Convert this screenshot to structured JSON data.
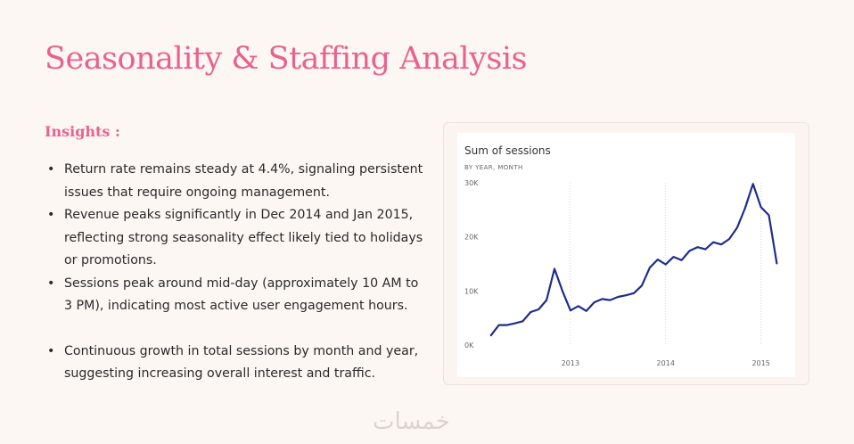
{
  "title": "Seasonality & Staffing Analysis",
  "insights": {
    "heading": "Insights :",
    "bullets": [
      "Return rate remains steady at 4.4%, signaling persistent issues that require ongoing management.",
      "Revenue peaks significantly in Dec 2014 and Jan 2015, reflecting strong seasonality effect likely tied to holidays or promotions.",
      "Sessions peak around mid-day (approximately 10 AM to 3 PM), indicating most active user engagement hours.",
      "Continuous growth in total sessions by month and year, suggesting increasing overall interest and traffic."
    ]
  },
  "watermark": "خمسات",
  "colors": {
    "accent": "#e9628f",
    "line": "#1f2d8c",
    "background": "#fdf7f4"
  },
  "chart_data": {
    "type": "line",
    "title": "Sum of sessions",
    "subtitle": "BY YEAR, MONTH",
    "xlabel": "",
    "ylabel": "",
    "x_ticks": [
      "2013",
      "2014",
      "2015"
    ],
    "y_ticks": [
      "0K",
      "10K",
      "20K",
      "30K"
    ],
    "ylim": [
      0,
      30000
    ],
    "grid": "vertical",
    "series": [
      {
        "values": [
          {
            "x": "2012-03",
            "y": 1800
          },
          {
            "x": "2012-04",
            "y": 3700
          },
          {
            "x": "2012-05",
            "y": 3700
          },
          {
            "x": "2012-06",
            "y": 4000
          },
          {
            "x": "2012-07",
            "y": 4400
          },
          {
            "x": "2012-08",
            "y": 6100
          },
          {
            "x": "2012-09",
            "y": 6600
          },
          {
            "x": "2012-10",
            "y": 8300
          },
          {
            "x": "2012-11",
            "y": 14100
          },
          {
            "x": "2012-12",
            "y": 10000
          },
          {
            "x": "2013-01",
            "y": 6400
          },
          {
            "x": "2013-02",
            "y": 7200
          },
          {
            "x": "2013-03",
            "y": 6300
          },
          {
            "x": "2013-04",
            "y": 7900
          },
          {
            "x": "2013-05",
            "y": 8500
          },
          {
            "x": "2013-06",
            "y": 8300
          },
          {
            "x": "2013-07",
            "y": 8900
          },
          {
            "x": "2013-08",
            "y": 9200
          },
          {
            "x": "2013-09",
            "y": 9600
          },
          {
            "x": "2013-10",
            "y": 11000
          },
          {
            "x": "2013-11",
            "y": 14300
          },
          {
            "x": "2013-12",
            "y": 15800
          },
          {
            "x": "2014-01",
            "y": 14900
          },
          {
            "x": "2014-02",
            "y": 16300
          },
          {
            "x": "2014-03",
            "y": 15700
          },
          {
            "x": "2014-04",
            "y": 17400
          },
          {
            "x": "2014-05",
            "y": 18100
          },
          {
            "x": "2014-06",
            "y": 17700
          },
          {
            "x": "2014-07",
            "y": 19000
          },
          {
            "x": "2014-08",
            "y": 18600
          },
          {
            "x": "2014-09",
            "y": 19600
          },
          {
            "x": "2014-10",
            "y": 21700
          },
          {
            "x": "2014-11",
            "y": 25300
          },
          {
            "x": "2014-12",
            "y": 29800
          },
          {
            "x": "2015-01",
            "y": 25500
          },
          {
            "x": "2015-02",
            "y": 24000
          },
          {
            "x": "2015-03",
            "y": 15100
          }
        ]
      }
    ]
  }
}
